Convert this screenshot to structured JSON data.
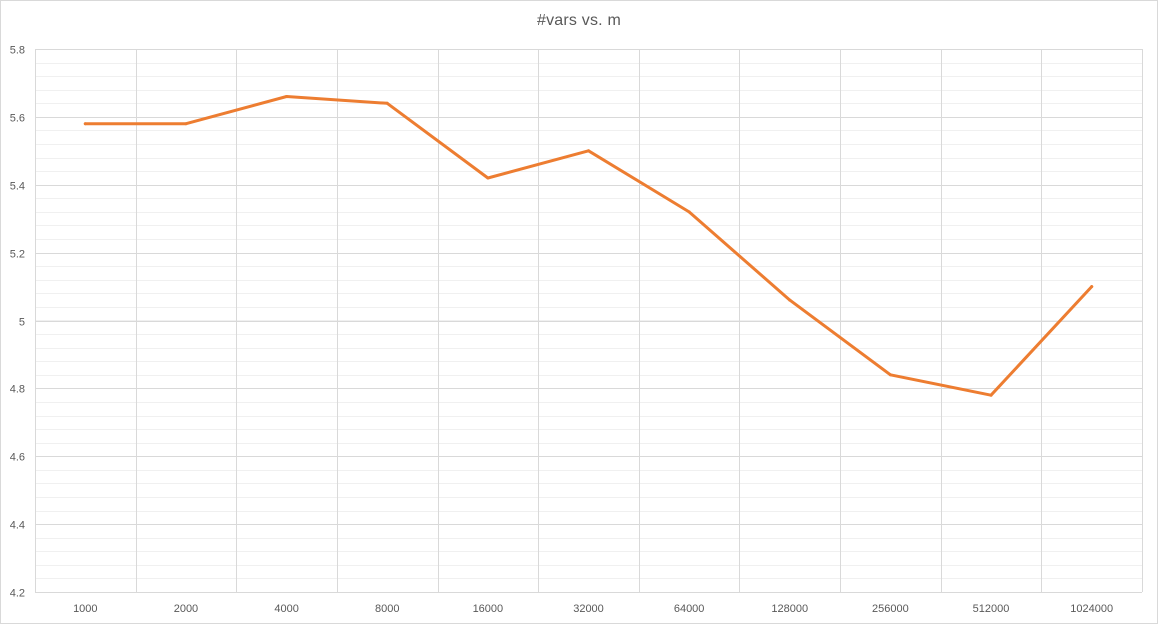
{
  "chart_data": {
    "type": "line",
    "title": "#vars vs. m",
    "xlabel": "",
    "ylabel": "",
    "categories": [
      "1000",
      "2000",
      "4000",
      "8000",
      "16000",
      "32000",
      "64000",
      "128000",
      "256000",
      "512000",
      "1024000"
    ],
    "series": [
      {
        "values": [
          5.58,
          5.58,
          5.66,
          5.64,
          5.42,
          5.5,
          5.32,
          5.06,
          4.84,
          4.78,
          5.1
        ],
        "color": "#ED7D31"
      }
    ],
    "ylim": [
      4.2,
      5.8
    ],
    "yticks": [
      "4.2",
      "4.4",
      "4.6",
      "4.8",
      "5",
      "5.2",
      "5.4",
      "5.6",
      "5.8"
    ],
    "grid": true,
    "legend": "none"
  }
}
